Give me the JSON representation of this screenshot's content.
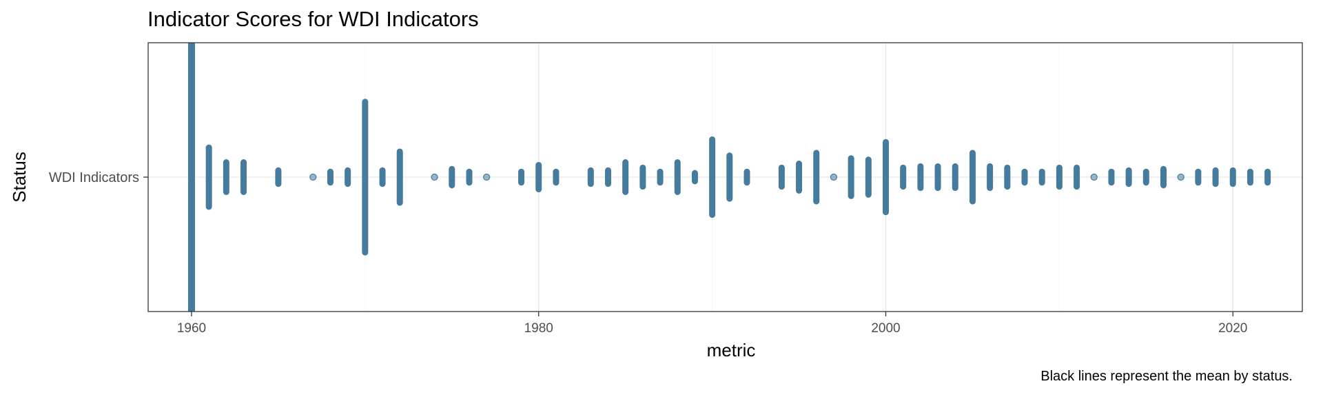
{
  "chart_data": {
    "type": "scatter",
    "title": "Indicator Scores for WDI Indicators",
    "xlabel": "metric",
    "ylabel": "Status",
    "caption": "Black lines represent the mean by status.",
    "xlim": [
      1957.5,
      2024
    ],
    "x_ticks": [
      1960,
      1980,
      2000,
      2020
    ],
    "categories": [
      "WDI Indicators"
    ],
    "grid": true,
    "series": [
      {
        "category": "WDI Indicators",
        "x": [
          1960,
          1961,
          1962,
          1963,
          1965,
          1967,
          1968,
          1969,
          1970,
          1971,
          1972,
          1974,
          1975,
          1976,
          1977,
          1979,
          1980,
          1981,
          1983,
          1984,
          1985,
          1986,
          1987,
          1988,
          1989,
          1990,
          1991,
          1992,
          1994,
          1995,
          1996,
          1997,
          1998,
          1999,
          2000,
          2001,
          2002,
          2003,
          2004,
          2005,
          2006,
          2007,
          2008,
          2009,
          2010,
          2011,
          2012,
          2013,
          2014,
          2015,
          2016,
          2017,
          2018,
          2019,
          2020,
          2021,
          2022
        ],
        "spread": [
          1.0,
          0.22,
          0.11,
          0.11,
          0.05,
          0.02,
          0.04,
          0.05,
          0.56,
          0.05,
          0.19,
          0.02,
          0.06,
          0.04,
          0.02,
          0.04,
          0.09,
          0.04,
          0.05,
          0.05,
          0.11,
          0.07,
          0.04,
          0.11,
          0.03,
          0.28,
          0.16,
          0.04,
          0.07,
          0.1,
          0.18,
          0.02,
          0.14,
          0.13,
          0.26,
          0.07,
          0.08,
          0.08,
          0.08,
          0.18,
          0.08,
          0.07,
          0.04,
          0.04,
          0.07,
          0.07,
          0.02,
          0.04,
          0.05,
          0.04,
          0.06,
          0.02,
          0.04,
          0.05,
          0.05,
          0.04,
          0.04
        ]
      }
    ],
    "point_color": "#457b9d"
  }
}
